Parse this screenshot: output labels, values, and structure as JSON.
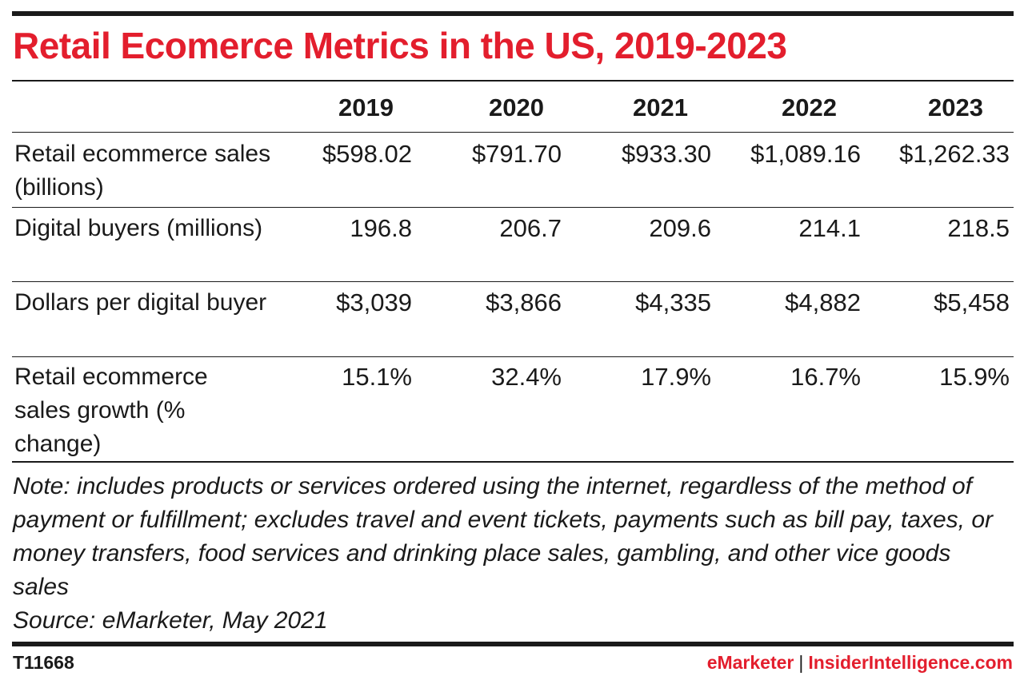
{
  "title": "Retail Ecomerce Metrics in the US, 2019-2023",
  "chart_data": {
    "type": "table",
    "title": "Retail Ecomerce Metrics in the US, 2019-2023",
    "columns": [
      "2019",
      "2020",
      "2021",
      "2022",
      "2023"
    ],
    "rows": [
      {
        "label": "Retail ecommerce sales (billions)",
        "values": [
          "$598.02",
          "$791.70",
          "$933.30",
          "$1,089.16",
          "$1,262.33"
        ]
      },
      {
        "label": "Digital buyers (millions)",
        "values": [
          "196.8",
          "206.7",
          "209.6",
          "214.1",
          "218.5"
        ]
      },
      {
        "label": "Dollars per digital buyer",
        "values": [
          "$3,039",
          "$3,866",
          "$4,335",
          "$4,882",
          "$5,458"
        ]
      },
      {
        "label": "Retail ecommerce sales growth (% change)",
        "values": [
          "15.1%",
          "32.4%",
          "17.9%",
          "16.7%",
          "15.9%"
        ]
      }
    ]
  },
  "note": "Note: includes products or services ordered using the internet, regardless of the method of payment or fulfillment; excludes travel and event tickets, payments such as bill pay, taxes, or money transfers, food services and drinking place sales, gambling, and other vice goods sales",
  "source": "Source: eMarketer, May 2021",
  "footer": {
    "chart_id": "T11668",
    "brand_primary": "eMarketer",
    "brand_separator": "|",
    "brand_secondary": "InsiderIntelligence.com"
  },
  "colors": {
    "accent": "#e31e2d",
    "text": "#1a1a1a"
  }
}
